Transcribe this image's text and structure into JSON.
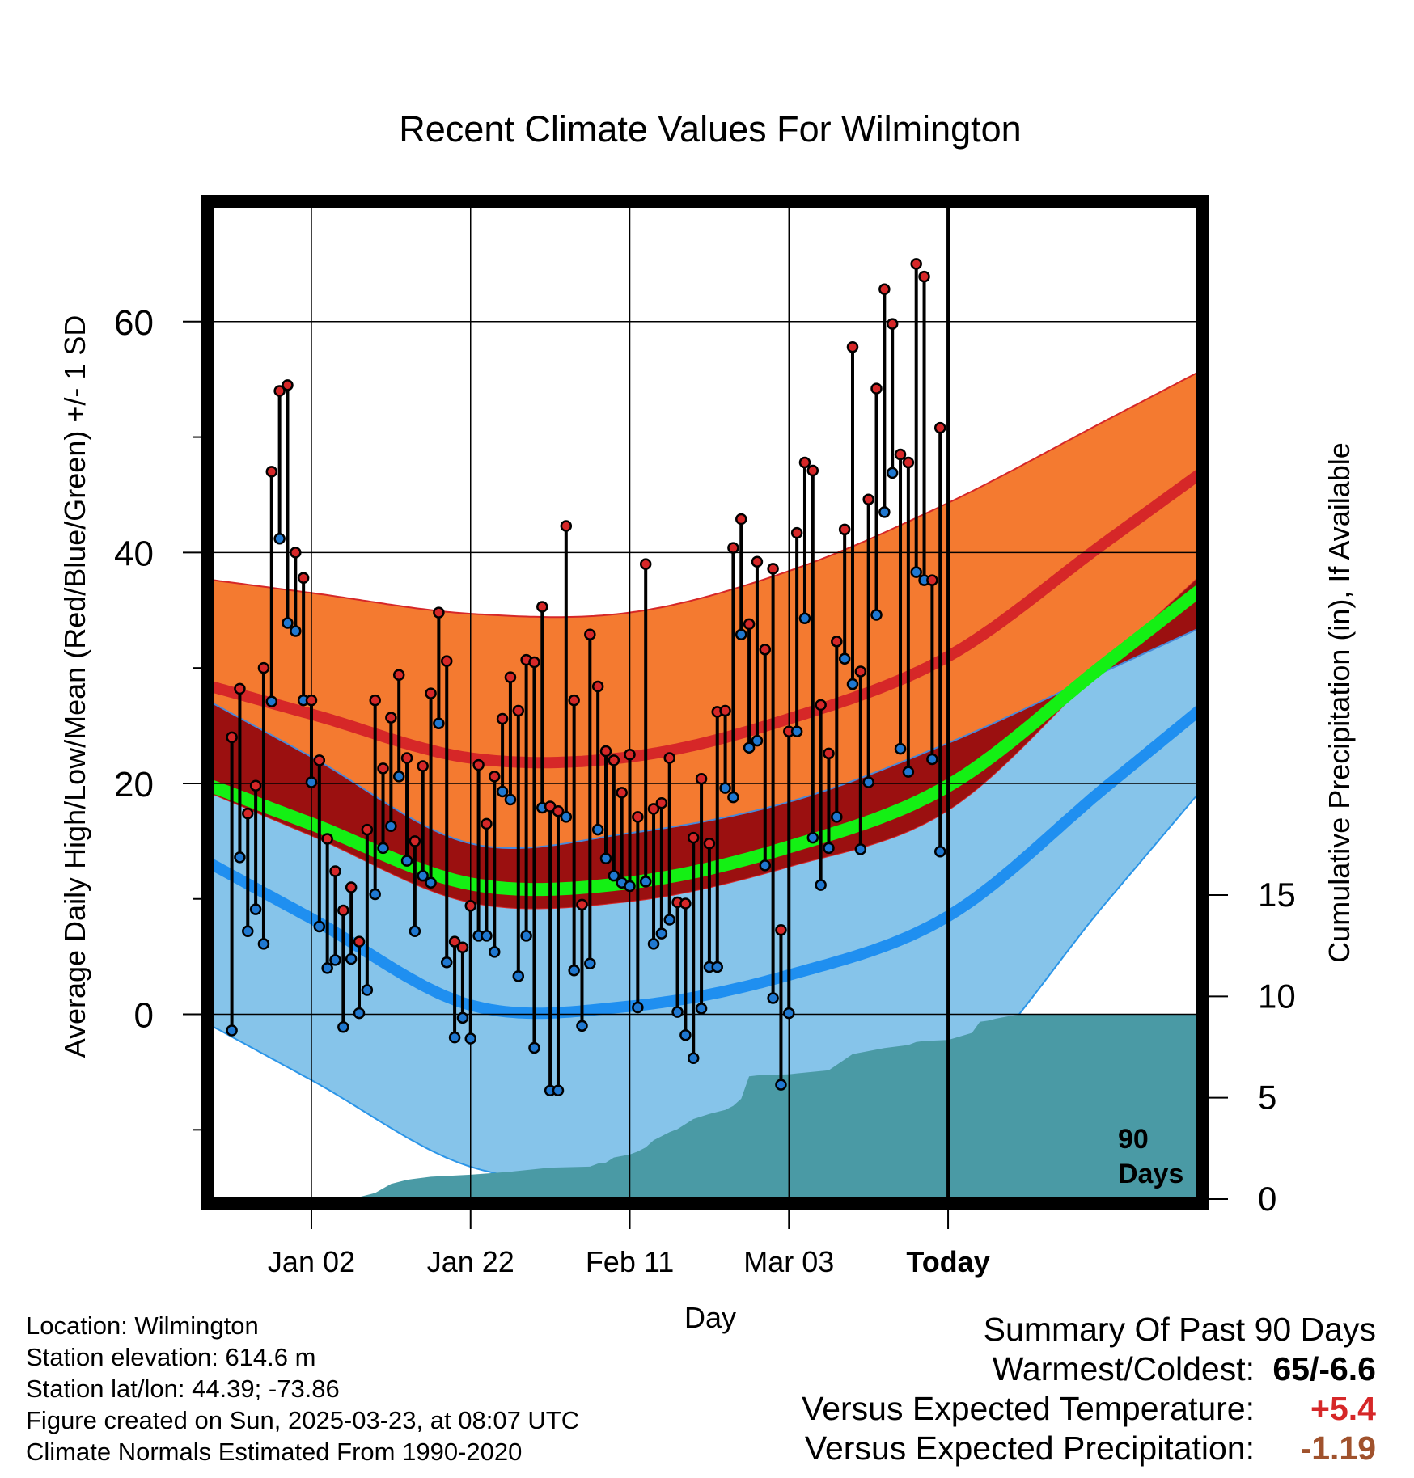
{
  "chart_data": {
    "type": "line",
    "title": "Recent Climate Values For Wilmington",
    "xlabel": "Day",
    "ylabel": "Average Daily High/Low/Mean (Red/Blue/Green) +/- 1 SD",
    "y2label": "Cumulative Precipitation (in), If Available",
    "x_ticks": [
      "Jan 02",
      "Jan 22",
      "Feb 11",
      "Mar 03",
      "Today"
    ],
    "y_ticks": [
      0,
      20,
      40,
      60
    ],
    "ylim": [
      -16,
      70
    ],
    "y2_ticks": [
      0,
      5,
      10,
      15
    ],
    "y2lim": [
      0,
      15
    ],
    "days_marker_label": [
      "90",
      "Days"
    ],
    "normals": {
      "days": [
        0,
        20,
        40,
        60,
        80,
        100
      ],
      "high_mean": [
        26,
        22.2,
        22.3,
        25.6,
        31,
        41
      ],
      "high_sd": [
        10.5,
        12.5,
        12.5,
        12.8,
        13.3,
        10.5
      ],
      "low_mean": [
        8.3,
        0.8,
        0.7,
        3.4,
        8.5,
        19.8
      ],
      "low_sd": [
        14,
        14,
        15,
        15,
        15,
        10
      ],
      "mean": [
        16.5,
        11.3,
        11.4,
        14.5,
        19.8,
        30.5
      ]
    },
    "series": [
      {
        "name": "High",
        "color": "#d62728",
        "values": [
          24,
          28.2,
          17.4,
          19.8,
          30,
          47,
          54,
          54.5,
          40,
          37.8,
          27.2,
          22,
          15.2,
          12.4,
          9,
          11,
          6.3,
          16,
          27.2,
          21.3,
          25.7,
          29.4,
          22.2,
          15,
          21.5,
          27.8,
          34.8,
          30.6,
          6.3,
          5.8,
          9.4,
          21.6,
          16.5,
          20.6,
          25.6,
          29.2,
          26.3,
          30.7,
          30.5,
          35.3,
          18,
          17.6,
          42.3,
          27.2,
          9.5,
          32.9,
          28.4,
          22.8,
          22,
          19.2,
          22.5,
          17.1,
          39,
          17.8,
          18.3,
          22.2,
          9.7,
          9.6,
          15.3,
          20.4,
          14.8,
          26.2,
          26.3,
          40.4,
          42.9,
          33.8,
          39.2,
          31.6,
          38.6,
          7.3,
          24.5,
          41.7,
          47.8,
          47.1,
          26.8,
          22.6,
          32.3,
          42,
          57.8,
          29.7,
          44.6,
          54.2,
          62.8,
          59.8,
          48.5,
          47.8,
          65,
          63.9,
          37.6,
          50.8
        ]
      },
      {
        "name": "Low",
        "color": "#1f78d1",
        "values": [
          -1.4,
          13.6,
          7.2,
          9.1,
          6.1,
          27.1,
          41.2,
          33.9,
          33.2,
          27.2,
          20.1,
          7.6,
          4,
          4.7,
          -1.1,
          4.8,
          0.1,
          2.1,
          10.4,
          14.4,
          16.3,
          20.6,
          13.3,
          7.2,
          12,
          11.4,
          25.2,
          4.5,
          -2,
          -0.3,
          -2.1,
          6.8,
          6.8,
          5.4,
          19.3,
          18.6,
          3.3,
          6.8,
          -2.9,
          17.9,
          -6.6,
          -6.6,
          17.1,
          3.8,
          -1,
          4.4,
          16,
          13.5,
          12,
          11.4,
          11.1,
          0.6,
          11.5,
          6.1,
          7,
          8.2,
          0.2,
          -1.8,
          -3.8,
          0.5,
          4.1,
          4.1,
          19.6,
          18.8,
          32.9,
          23.1,
          23.7,
          12.9,
          1.4,
          -6.1,
          0.1,
          24.5,
          34.3,
          15.3,
          11.2,
          14.4,
          17.1,
          30.8,
          28.6,
          14.3,
          20.1,
          34.6,
          43.5,
          46.9,
          23,
          21,
          38.3,
          37.6,
          22.1,
          14.1
        ]
      }
    ],
    "precip_cumulative": {
      "days": [
        0,
        5,
        8,
        10,
        12,
        15,
        20,
        25,
        30,
        35,
        36,
        37,
        38,
        40,
        41,
        42,
        43,
        44,
        45,
        46,
        47,
        48,
        50,
        52,
        53,
        54,
        55,
        56,
        57,
        60,
        61,
        65,
        68,
        70,
        72,
        75,
        76,
        77,
        80,
        83,
        84,
        85,
        86,
        88,
        89,
        90
      ],
      "values": [
        0,
        0,
        0.3,
        0.75,
        0.95,
        1.1,
        1.2,
        1.35,
        1.55,
        1.6,
        1.75,
        1.8,
        2.05,
        2.2,
        2.35,
        2.55,
        2.9,
        3.1,
        3.3,
        3.45,
        3.7,
        3.95,
        4.2,
        4.4,
        4.6,
        4.95,
        6.05,
        6.1,
        6.12,
        6.15,
        6.2,
        6.35,
        7.15,
        7.3,
        7.45,
        7.6,
        7.75,
        7.8,
        7.85,
        8.2,
        8.75,
        8.8,
        8.9,
        9.05,
        9.1,
        9.1
      ]
    }
  },
  "info": {
    "location": "Location: Wilmington",
    "elevation": "Station elevation: 614.6 m",
    "latlon": "Station lat/lon: 44.39; -73.86",
    "created": "Figure created on Sun, 2025-03-23, at 08:07 UTC",
    "normals": "Climate Normals Estimated From 1990-2020"
  },
  "summary": {
    "heading": "Summary Of Past 90 Days",
    "rows": [
      {
        "label": "Warmest/Coldest:",
        "value": "65/-6.6",
        "color": "#000000"
      },
      {
        "label": "Versus Expected Temperature:",
        "value": "+5.4",
        "color": "#d62728"
      },
      {
        "label": "Versus Expected Precipitation:",
        "value": "-1.19",
        "color": "#a0522d"
      }
    ]
  },
  "colors": {
    "high_band": "#f47a30",
    "high_line": "#d62728",
    "low_band": "#86c4ea",
    "low_line": "#1f8ff0",
    "overlap": "#9b1010",
    "mean_line": "#14f014",
    "precip": "#4a9aa5"
  }
}
